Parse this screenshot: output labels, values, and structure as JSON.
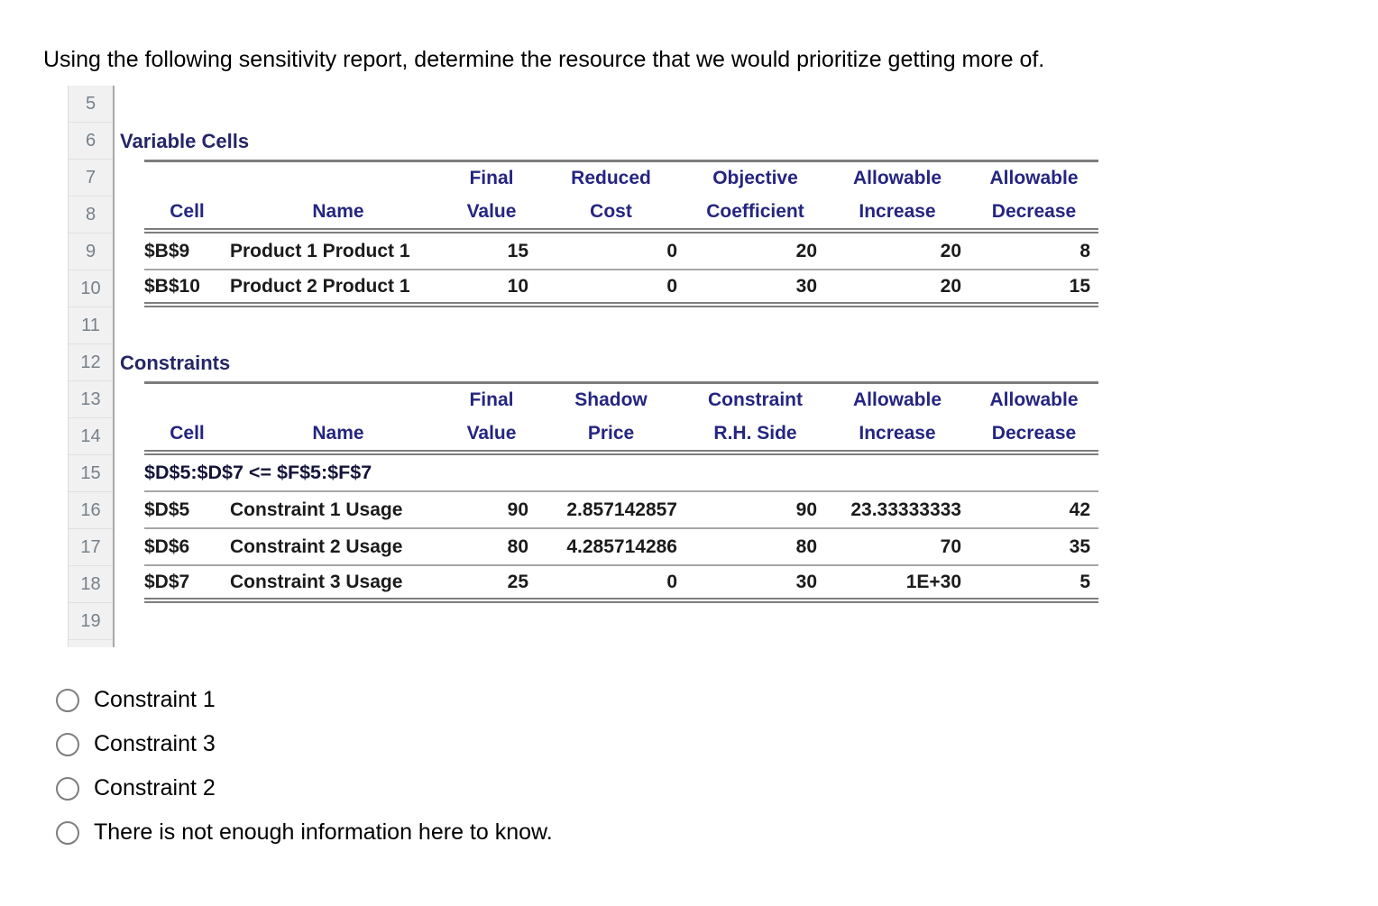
{
  "question": {
    "text": "Using the following sensitivity report, determine the resource that we would prioritize getting more of."
  },
  "sheet": {
    "row_numbers": [
      "5",
      "6",
      "7",
      "8",
      "9",
      "10",
      "11",
      "12",
      "13",
      "14",
      "15",
      "16",
      "17",
      "18",
      "19"
    ],
    "variable_cells": {
      "title": "Variable Cells",
      "headers": [
        {
          "line1": "",
          "line2": "Cell"
        },
        {
          "line1": "",
          "line2": "Name"
        },
        {
          "line1": "Final",
          "line2": "Value"
        },
        {
          "line1": "Reduced",
          "line2": "Cost"
        },
        {
          "line1": "Objective",
          "line2": "Coefficient"
        },
        {
          "line1": "Allowable",
          "line2": "Increase"
        },
        {
          "line1": "Allowable",
          "line2": "Decrease"
        }
      ],
      "rows": [
        {
          "cell": "$B$9",
          "name": "Product 1 Product 1",
          "final_value": "15",
          "reduced_cost": "0",
          "objective_coefficient": "20",
          "allowable_increase": "20",
          "allowable_decrease": "8"
        },
        {
          "cell": "$B$10",
          "name": "Product 2 Product 1",
          "final_value": "10",
          "reduced_cost": "0",
          "objective_coefficient": "30",
          "allowable_increase": "20",
          "allowable_decrease": "15"
        }
      ]
    },
    "constraints": {
      "title": "Constraints",
      "headers": [
        {
          "line1": "",
          "line2": "Cell"
        },
        {
          "line1": "",
          "line2": "Name"
        },
        {
          "line1": "Final",
          "line2": "Value"
        },
        {
          "line1": "Shadow",
          "line2": "Price"
        },
        {
          "line1": "Constraint",
          "line2": "R.H. Side"
        },
        {
          "line1": "Allowable",
          "line2": "Increase"
        },
        {
          "line1": "Allowable",
          "line2": "Decrease"
        }
      ],
      "group_formula": "$D$5:$D$7 <= $F$5:$F$7",
      "rows": [
        {
          "cell": "$D$5",
          "name": "Constraint 1 Usage",
          "final_value": "90",
          "shadow_price": "2.857142857",
          "rhs": "90",
          "allowable_increase": "23.33333333",
          "allowable_decrease": "42"
        },
        {
          "cell": "$D$6",
          "name": "Constraint 2 Usage",
          "final_value": "80",
          "shadow_price": "4.285714286",
          "rhs": "80",
          "allowable_increase": "70",
          "allowable_decrease": "35"
        },
        {
          "cell": "$D$7",
          "name": "Constraint 3 Usage",
          "final_value": "25",
          "shadow_price": "0",
          "rhs": "30",
          "allowable_increase": "1E+30",
          "allowable_decrease": "5"
        }
      ]
    }
  },
  "options": [
    {
      "label": "Constraint 1",
      "selected": false
    },
    {
      "label": "Constraint 3",
      "selected": false
    },
    {
      "label": "Constraint 2",
      "selected": false
    },
    {
      "label": "There is not enough information here to know.",
      "selected": false
    }
  ],
  "colors": {
    "header_text": "#252581",
    "section_title_text": "#252567",
    "table_line_major": "#7d7d7d",
    "table_line_minor": "#a6a6a6",
    "gutter_background": "#f1f1f1",
    "gutter_text": "#77808a"
  }
}
